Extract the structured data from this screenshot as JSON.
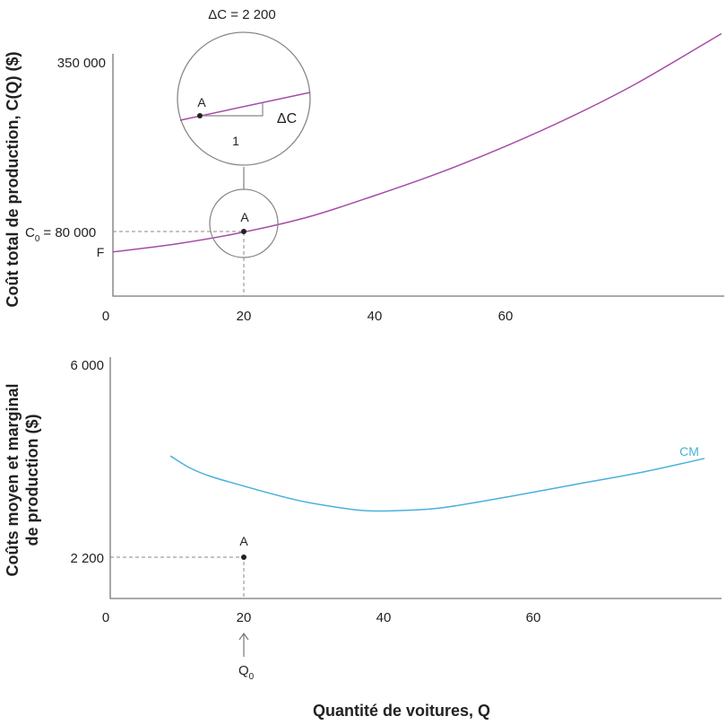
{
  "chart_data": [
    {
      "type": "line",
      "ylabel": "Coût total de production, C(Q) ($)",
      "xlabel": "",
      "x_ticks": [
        "0",
        "20",
        "40",
        "60"
      ],
      "y_ticks": [
        "350 000"
      ],
      "xlim": [
        0,
        93
      ],
      "ylim": [
        -20000,
        350000
      ],
      "grid": false,
      "series": [
        {
          "color": "#a64ca6",
          "x": [
            0,
            10,
            20,
            30,
            40,
            50,
            60,
            70,
            80,
            93
          ],
          "y": [
            49000,
            62000,
            80000,
            104000,
            137000,
            173000,
            214000,
            260000,
            312000,
            390000
          ]
        }
      ],
      "point_A": {
        "label": "A",
        "x": 20,
        "y": 80000
      },
      "c0_label": "C",
      "c0_sub": "0",
      "c0_value": "= 80 000",
      "f_label": "F",
      "magnifier": {
        "title": "ΔC = 2 200",
        "point_label": "A",
        "delta_label": "ΔC",
        "run_label": "1"
      }
    },
    {
      "type": "line",
      "ylabel_line1": "Coûts moyen et marginal",
      "ylabel_line2": "de production ($)",
      "xlabel": "Quantité de voitures, Q",
      "x_ticks": [
        "0",
        "20",
        "40",
        "60"
      ],
      "y_ticks": [
        "6 000",
        "2 200"
      ],
      "xlim": [
        0,
        92
      ],
      "ylim": [
        1400,
        6000
      ],
      "grid": false,
      "series": [
        {
          "name": "CM",
          "color": "#4ab0dc",
          "x": [
            9,
            12,
            15,
            20,
            25,
            30,
            38,
            45,
            50,
            60,
            70,
            80,
            89
          ],
          "y": [
            4190,
            3950,
            3790,
            3600,
            3420,
            3270,
            3120,
            3130,
            3180,
            3400,
            3640,
            3880,
            4140
          ]
        }
      ],
      "point_A": {
        "label": "A",
        "x": 20,
        "y": 2200
      },
      "q0_label": "Q",
      "q0_sub": "0"
    }
  ]
}
